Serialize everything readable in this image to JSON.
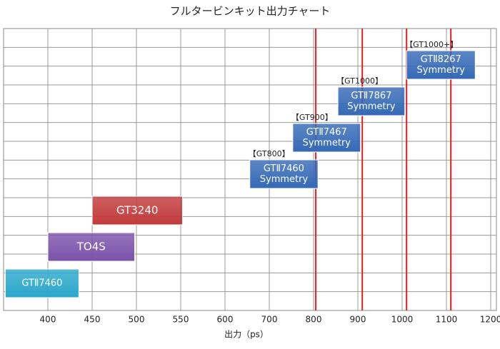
{
  "chart_data": {
    "type": "range-bar",
    "title": "フルタービンキット出力チャート",
    "x_label": "出力（ps）",
    "xlim": [
      350,
      1200
    ],
    "xticks": [
      400,
      450,
      500,
      550,
      600,
      700,
      800,
      900,
      1000,
      1100,
      1200
    ],
    "x_scale": "tick-spaced",
    "grid": true,
    "reference_lines": {
      "color": "#e02020",
      "values": [
        805,
        910,
        1010,
        1110
      ]
    },
    "bars": [
      {
        "name": [
          "GTⅡ7460"
        ],
        "start": 352,
        "end": 435,
        "color": "#2aa7cc"
      },
      {
        "name": [
          "TO4S"
        ],
        "start": 400,
        "end": 498,
        "color": "#7b52ab"
      },
      {
        "name": [
          "GT3240"
        ],
        "start": 450,
        "end": 552,
        "color": "#c23a3a"
      },
      {
        "name": [
          "GTⅡ7460",
          "Symmetry"
        ],
        "tag": "【GT800】",
        "start": 656,
        "end": 810,
        "color": "#3469b6"
      },
      {
        "name": [
          "GTⅡ7467",
          "Symmetry"
        ],
        "tag": "【GT900】",
        "start": 753,
        "end": 906,
        "color": "#3469b6"
      },
      {
        "name": [
          "GTⅡ7867",
          "Symmetry"
        ],
        "tag": "【GT1000】",
        "start": 855,
        "end": 1006,
        "color": "#3469b6"
      },
      {
        "name": [
          "GTⅡ8267",
          "Symmetry"
        ],
        "tag": "【GT1000+】",
        "start": 1010,
        "end": 1165,
        "color": "#3469b6"
      }
    ]
  }
}
